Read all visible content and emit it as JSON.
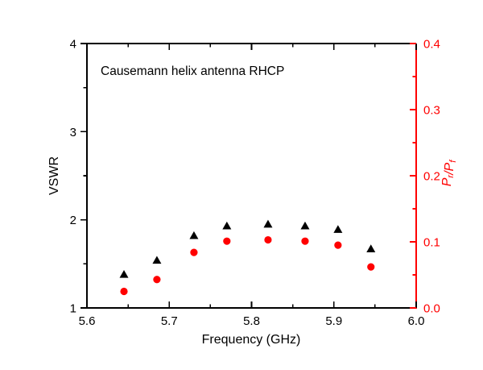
{
  "figure": {
    "background": "#ffffff",
    "annotation": "Causemann helix antenna RHCP"
  },
  "chart_data": {
    "type": "scatter",
    "annotation": "Causemann helix antenna RHCP",
    "xlabel": "Frequency (GHz)",
    "ylabel_left": "VSWR",
    "ylabel_right": "Pr/Pf",
    "ylabel_right_segments": [
      {
        "t": "P",
        "sub": false,
        "italic": true
      },
      {
        "t": "r",
        "sub": true,
        "italic": true
      },
      {
        "t": "/",
        "sub": false,
        "italic": true
      },
      {
        "t": "P",
        "sub": false,
        "italic": true
      },
      {
        "t": "f",
        "sub": true,
        "italic": true
      }
    ],
    "xlim": [
      5.6,
      6.0
    ],
    "ylim_left": [
      1,
      4
    ],
    "ylim_right": [
      0.0,
      0.4
    ],
    "x_major_ticks": [
      "5.6",
      "5.7",
      "5.8",
      "5.9",
      "6.0"
    ],
    "x_minor_step": 0.05,
    "y_left_major_ticks": [
      "1",
      "2",
      "3",
      "4"
    ],
    "y_left_minor_step": 0.5,
    "y_right_major_ticks": [
      "0.0",
      "0.1",
      "0.2",
      "0.3",
      "0.4"
    ],
    "y_right_minor_step": 0.05,
    "grid": false,
    "legend_position": "none",
    "colors": {
      "left_axis": "#000000",
      "right_axis": "#ff0000",
      "vswr_marker": "#000000",
      "prpf_marker": "#ff0000"
    },
    "series": [
      {
        "name": "VSWR",
        "axis": "left",
        "marker": "triangle",
        "color": "#000000",
        "x": [
          5.645,
          5.685,
          5.73,
          5.77,
          5.82,
          5.865,
          5.905,
          5.945
        ],
        "y": [
          1.38,
          1.54,
          1.82,
          1.93,
          1.95,
          1.93,
          1.89,
          1.67
        ]
      },
      {
        "name": "Pr/Pf",
        "axis": "right",
        "marker": "circle",
        "color": "#ff0000",
        "x": [
          5.645,
          5.685,
          5.73,
          5.77,
          5.82,
          5.865,
          5.905,
          5.945
        ],
        "y": [
          0.025,
          0.043,
          0.084,
          0.101,
          0.103,
          0.101,
          0.095,
          0.062
        ]
      }
    ]
  }
}
